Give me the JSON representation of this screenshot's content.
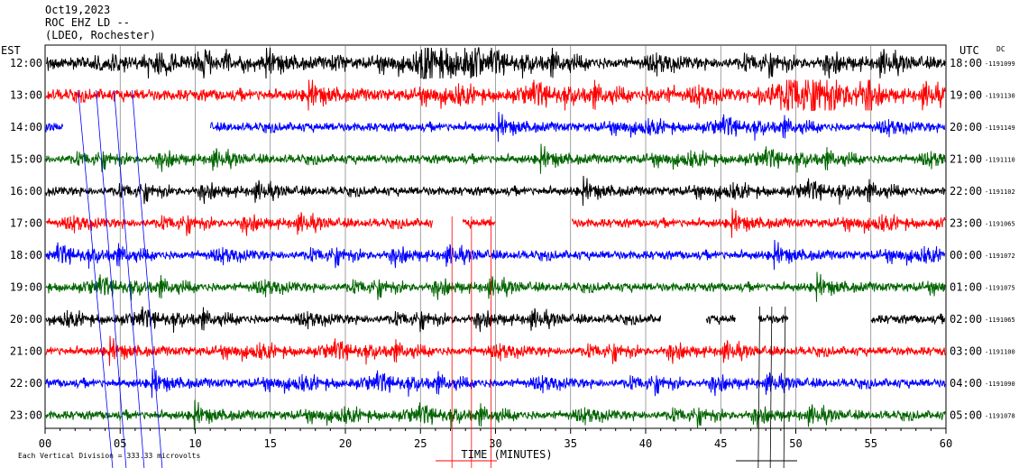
{
  "header": {
    "date": "Oct19,2023",
    "station": "ROC EHZ LD --",
    "network": "(LDEO, Rochester)"
  },
  "chart_data": {
    "type": "line",
    "title": "Oct19,2023",
    "left_axis_label": "EST",
    "right_axis_label": "UTC",
    "dc_label": "DC",
    "xlabel": "TIME (MINUTES)",
    "xlim": [
      0,
      60
    ],
    "x_ticks": [
      "00",
      "05",
      "10",
      "15",
      "20",
      "25",
      "30",
      "35",
      "40",
      "45",
      "50",
      "55",
      "60"
    ],
    "footer_note": "Each Vertical Division = 333.33 microvolts",
    "trace_colors": [
      "#000000",
      "#ff0000",
      "#0000ff",
      "#006400"
    ],
    "rows": [
      {
        "est": "12:00",
        "utc": "18:00",
        "dc": "-1191099"
      },
      {
        "est": "13:00",
        "utc": "19:00",
        "dc": "-1191130"
      },
      {
        "est": "14:00",
        "utc": "20:00",
        "dc": "-1191149"
      },
      {
        "est": "15:00",
        "utc": "21:00",
        "dc": "-1191110"
      },
      {
        "est": "16:00",
        "utc": "22:00",
        "dc": "-1191102"
      },
      {
        "est": "17:00",
        "utc": "23:00",
        "dc": "-1191065"
      },
      {
        "est": "18:00",
        "utc": "00:00",
        "dc": "-1191072"
      },
      {
        "est": "19:00",
        "utc": "01:00",
        "dc": "-1191075"
      },
      {
        "est": "20:00",
        "utc": "02:00",
        "dc": "-1191065"
      },
      {
        "est": "21:00",
        "utc": "03:00",
        "dc": "-1191100"
      },
      {
        "est": "22:00",
        "utc": "04:00",
        "dc": "-1191090"
      },
      {
        "est": "23:00",
        "utc": "05:00",
        "dc": "-1191078"
      }
    ]
  }
}
